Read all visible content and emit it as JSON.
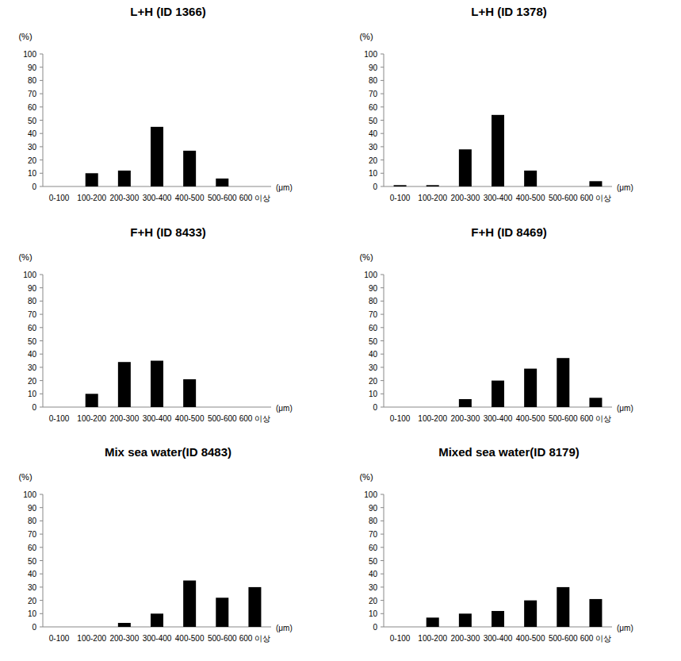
{
  "chart_data": [
    {
      "type": "bar",
      "title": "L+H (ID 1366)",
      "ylabel": "(%)",
      "xlabel": "(μm)",
      "categories": [
        "0-100",
        "100-200",
        "200-300",
        "300-400",
        "400-500",
        "500-600",
        "600 이상"
      ],
      "values": [
        0,
        10,
        12,
        45,
        27,
        6,
        0
      ],
      "color": "#000000",
      "ylim": [
        0,
        100
      ],
      "yticks": [
        0,
        10,
        20,
        30,
        40,
        50,
        60,
        70,
        80,
        90,
        100
      ],
      "grid": false
    },
    {
      "type": "bar",
      "title": "L+H (ID 1378)",
      "ylabel": "(%)",
      "xlabel": "(μm)",
      "categories": [
        "0-100",
        "100-200",
        "200-300",
        "300-400",
        "400-500",
        "500-600",
        "600 이상"
      ],
      "values": [
        1,
        1,
        28,
        54,
        12,
        0,
        4
      ],
      "color": "#000000",
      "ylim": [
        0,
        100
      ],
      "yticks": [
        0,
        10,
        20,
        30,
        40,
        50,
        60,
        70,
        80,
        90,
        100
      ],
      "grid": false
    },
    {
      "type": "bar",
      "title": "F+H (ID 8433)",
      "ylabel": "(%)",
      "xlabel": "(μm)",
      "categories": [
        "0-100",
        "100-200",
        "200-300",
        "300-400",
        "400-500",
        "500-600",
        "600 이상"
      ],
      "values": [
        0,
        10,
        34,
        35,
        21,
        0,
        0
      ],
      "color": "#000000",
      "ylim": [
        0,
        100
      ],
      "yticks": [
        0,
        10,
        20,
        30,
        40,
        50,
        60,
        70,
        80,
        90,
        100
      ],
      "grid": false
    },
    {
      "type": "bar",
      "title": "F+H (ID 8469)",
      "ylabel": "(%)",
      "xlabel": "(μm)",
      "categories": [
        "0-100",
        "100-200",
        "200-300",
        "300-400",
        "400-500",
        "500-600",
        "600 이상"
      ],
      "values": [
        0,
        0,
        6,
        20,
        29,
        37,
        7
      ],
      "color": "#000000",
      "ylim": [
        0,
        100
      ],
      "yticks": [
        0,
        10,
        20,
        30,
        40,
        50,
        60,
        70,
        80,
        90,
        100
      ],
      "grid": false
    },
    {
      "type": "bar",
      "title": "Mix sea water(ID 8483)",
      "ylabel": "(%)",
      "xlabel": "(μm)",
      "categories": [
        "0-100",
        "100-200",
        "200-300",
        "300-400",
        "400-500",
        "500-600",
        "600 이상"
      ],
      "values": [
        0,
        0,
        3,
        10,
        35,
        22,
        30
      ],
      "color": "#000000",
      "ylim": [
        0,
        100
      ],
      "yticks": [
        0,
        10,
        20,
        30,
        40,
        50,
        60,
        70,
        80,
        90,
        100
      ],
      "grid": false
    },
    {
      "type": "bar",
      "title": "Mixed sea water(ID 8179)",
      "ylabel": "(%)",
      "xlabel": "(μm)",
      "categories": [
        "0-100",
        "100-200",
        "200-300",
        "300-400",
        "400-500",
        "500-600",
        "600 이상"
      ],
      "values": [
        0,
        7,
        10,
        12,
        20,
        30,
        21
      ],
      "color": "#000000",
      "ylim": [
        0,
        100
      ],
      "yticks": [
        0,
        10,
        20,
        30,
        40,
        50,
        60,
        70,
        80,
        90,
        100
      ],
      "grid": false
    }
  ]
}
